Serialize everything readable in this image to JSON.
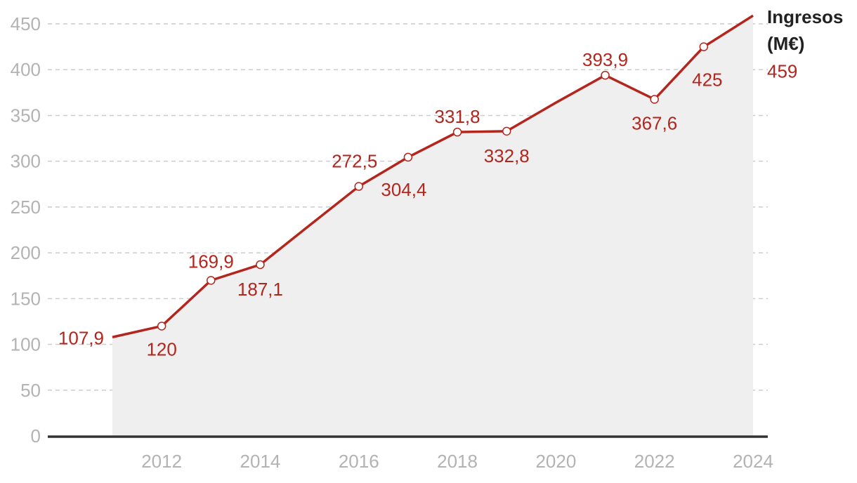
{
  "chart_data": {
    "type": "area",
    "x": [
      2011,
      2012,
      2013,
      2014,
      2015,
      2016,
      2017,
      2018,
      2019,
      2020,
      2021,
      2022,
      2023,
      2024
    ],
    "series": [
      {
        "name": "Ingresos (M€)",
        "name_lines": [
          "Ingresos",
          "(M€)"
        ],
        "values": [
          107.9,
          120,
          169.9,
          187.1,
          230,
          272.5,
          304.4,
          331.8,
          332.8,
          364,
          393.9,
          367.6,
          425,
          459
        ],
        "labels": [
          "107,9",
          "120",
          "169,9",
          "187,1",
          "",
          "272,5",
          "304,4",
          "331,8",
          "332,8",
          "",
          "393,9",
          "367,6",
          "425",
          "459"
        ],
        "markers": [
          false,
          true,
          true,
          true,
          false,
          true,
          true,
          true,
          true,
          false,
          true,
          true,
          true,
          false
        ]
      }
    ],
    "xticks": [
      "2012",
      "2014",
      "2016",
      "2018",
      "2020",
      "2022",
      "2024"
    ],
    "xtick_values": [
      2012,
      2014,
      2016,
      2018,
      2020,
      2022,
      2024
    ],
    "yticks": [
      "0",
      "50",
      "100",
      "150",
      "200",
      "250",
      "300",
      "350",
      "400",
      "450"
    ],
    "ytick_values": [
      0,
      50,
      100,
      150,
      200,
      250,
      300,
      350,
      400,
      450
    ],
    "ylim": [
      0,
      450
    ],
    "xlim": [
      2011,
      2024
    ],
    "grid": true,
    "colors": {
      "line": "#b3261e",
      "area": "#efefef",
      "grid": "#cccccc",
      "axis": "#333333",
      "tick": "#b3b3b3"
    }
  }
}
